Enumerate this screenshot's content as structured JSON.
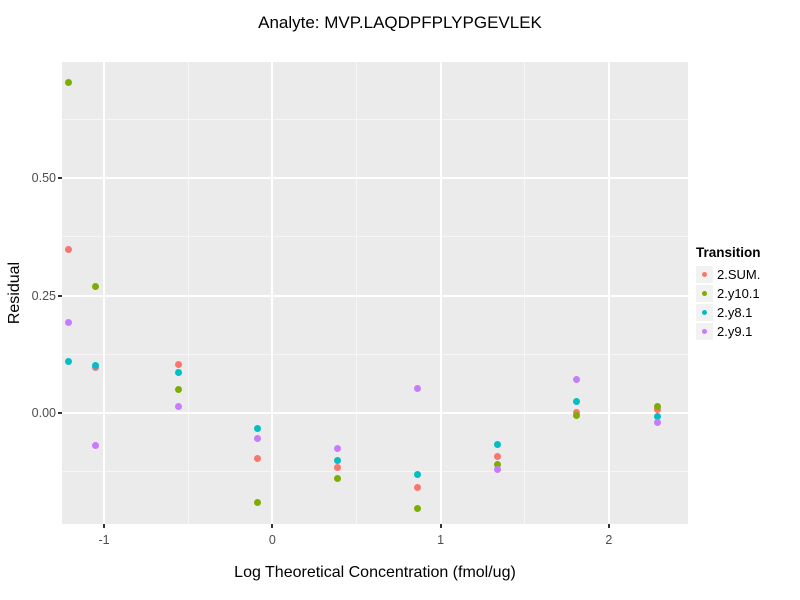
{
  "chart_data": {
    "type": "scatter",
    "title": "Analyte: MVP.LAQDPFPLYPGEVLEK",
    "xlabel": "Log Theoretical Concentration (fmol/ug)",
    "ylabel": "Residual",
    "legend_title": "Transition",
    "legend_position": "right",
    "grid": "major+minor",
    "panel_background": "#EBEBEB",
    "gridline_color": "#FFFFFF",
    "tick_label_color": "#4D4D4D",
    "xlim": [
      -1.25,
      2.47
    ],
    "ylim": [
      -0.236,
      0.747
    ],
    "x_ticks": {
      "values": [
        -1,
        0,
        1,
        2
      ],
      "labels": [
        "-1",
        "0",
        "1",
        "2"
      ]
    },
    "y_ticks": {
      "values": [
        0,
        0.25,
        0.5
      ],
      "labels": [
        "0.00",
        "0.25",
        "0.50"
      ]
    },
    "x_minor_ticks": [
      -0.5,
      0.5,
      1.5
    ],
    "y_minor_ticks": [
      -0.125,
      0.125,
      0.375,
      0.625
    ],
    "x": [
      -1.21,
      -1.05,
      -0.56,
      -0.09,
      0.39,
      0.86,
      1.34,
      1.81,
      2.29
    ],
    "series": [
      {
        "name": "2.SUM.",
        "color": "#F8766D",
        "values": [
          0.347,
          0.096,
          0.104,
          -0.097,
          -0.116,
          -0.158,
          -0.093,
          0.001,
          0.008
        ]
      },
      {
        "name": "2.y10.1",
        "color": "#7CAE00",
        "values": [
          0.704,
          0.269,
          0.051,
          -0.191,
          -0.14,
          -0.202,
          -0.109,
          -0.006,
          0.015
        ]
      },
      {
        "name": "2.y8.1",
        "color": "#00BFC4",
        "values": [
          0.109,
          0.102,
          0.087,
          -0.033,
          -0.1,
          -0.13,
          -0.066,
          0.025,
          -0.008
        ]
      },
      {
        "name": "2.y9.1",
        "color": "#C77CFF",
        "values": [
          0.193,
          -0.068,
          0.013,
          -0.055,
          -0.075,
          0.052,
          -0.121,
          0.072,
          -0.02
        ]
      }
    ]
  }
}
